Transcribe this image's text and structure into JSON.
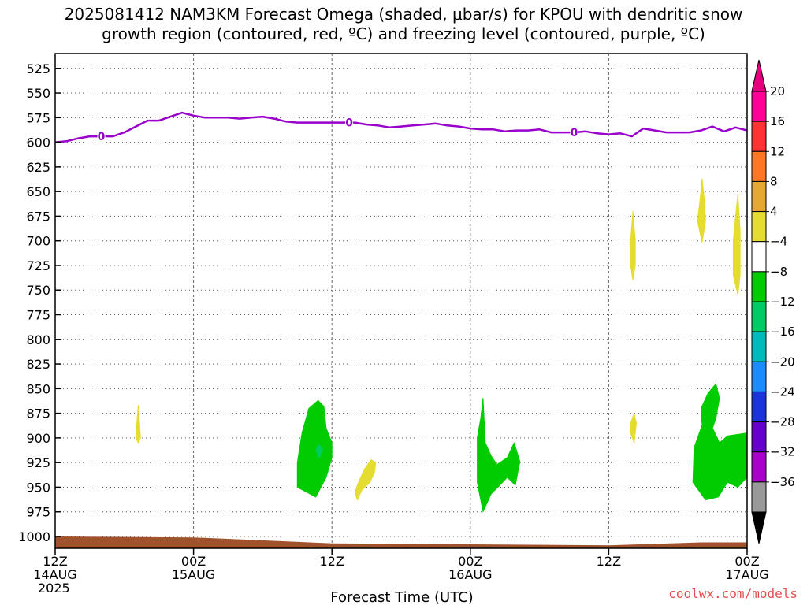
{
  "chart_data": {
    "type": "heatmap",
    "title_lines": [
      "2025081412 NAM3KM Forecast Omega (shaded, μbar/s) for KPOU with dendritic snow",
      "growth region (contoured, red, ºC) and freezing level (contoured, purple, ºC)"
    ],
    "xlabel": "Forecast Time (UTC)",
    "credit": "coolwx.com/models",
    "x_range_hours": [
      0,
      60
    ],
    "y_range_hpa": [
      510,
      1012
    ],
    "y_ticks": [
      525,
      550,
      575,
      600,
      625,
      650,
      675,
      700,
      725,
      750,
      775,
      800,
      825,
      850,
      875,
      900,
      925,
      950,
      975,
      1000
    ],
    "x_ticks": [
      {
        "hour": 0,
        "lines": [
          "12Z",
          "14AUG",
          "2025"
        ]
      },
      {
        "hour": 12,
        "lines": [
          "00Z",
          "15AUG"
        ]
      },
      {
        "hour": 24,
        "lines": [
          "12Z"
        ]
      },
      {
        "hour": 36,
        "lines": [
          "00Z",
          "16AUG"
        ]
      },
      {
        "hour": 48,
        "lines": [
          "12Z"
        ]
      },
      {
        "hour": 60,
        "lines": [
          "00Z",
          "17AUG"
        ]
      }
    ],
    "grid": true,
    "freezing_level": {
      "color": "#9900cc",
      "label": "0",
      "label_hours": [
        4,
        25.5,
        45
      ],
      "points": [
        [
          0,
          600
        ],
        [
          1,
          599
        ],
        [
          2,
          596
        ],
        [
          3,
          594
        ],
        [
          4,
          594
        ],
        [
          5,
          594
        ],
        [
          6,
          590
        ],
        [
          7,
          584
        ],
        [
          8,
          578
        ],
        [
          9,
          578
        ],
        [
          10,
          574
        ],
        [
          11,
          570
        ],
        [
          12,
          573
        ],
        [
          13,
          575
        ],
        [
          14,
          575
        ],
        [
          15,
          575
        ],
        [
          16,
          576
        ],
        [
          17,
          575
        ],
        [
          18,
          574
        ],
        [
          19,
          576
        ],
        [
          20,
          579
        ],
        [
          21,
          580
        ],
        [
          22,
          580
        ],
        [
          23,
          580
        ],
        [
          24,
          580
        ],
        [
          25,
          580
        ],
        [
          26,
          580
        ],
        [
          27,
          582
        ],
        [
          28,
          583
        ],
        [
          29,
          585
        ],
        [
          30,
          584
        ],
        [
          31,
          583
        ],
        [
          32,
          582
        ],
        [
          33,
          581
        ],
        [
          34,
          583
        ],
        [
          35,
          584
        ],
        [
          36,
          586
        ],
        [
          37,
          587
        ],
        [
          38,
          587
        ],
        [
          39,
          589
        ],
        [
          40,
          588
        ],
        [
          41,
          588
        ],
        [
          42,
          587
        ],
        [
          43,
          590
        ],
        [
          44,
          590
        ],
        [
          45,
          590
        ],
        [
          46,
          589
        ],
        [
          47,
          591
        ],
        [
          48,
          592
        ],
        [
          49,
          591
        ],
        [
          50,
          594
        ],
        [
          51,
          586
        ],
        [
          52,
          588
        ],
        [
          53,
          590
        ],
        [
          54,
          590
        ],
        [
          55,
          590
        ],
        [
          56,
          588
        ],
        [
          57,
          584
        ],
        [
          58,
          589
        ],
        [
          59,
          585
        ],
        [
          60,
          588
        ]
      ]
    },
    "surface": {
      "color": "#a0522d",
      "points": [
        [
          0,
          1000
        ],
        [
          12,
          1001
        ],
        [
          24,
          1007
        ],
        [
          36,
          1008
        ],
        [
          48,
          1009
        ],
        [
          56,
          1006
        ],
        [
          60,
          1006
        ]
      ]
    },
    "omega_regions": [
      {
        "level": 4,
        "color": "#e5dc32",
        "points": [
          [
            7.0,
            900
          ],
          [
            7.1,
            882
          ],
          [
            7.2,
            867
          ],
          [
            7.3,
            882
          ],
          [
            7.4,
            900
          ],
          [
            7.2,
            905
          ]
        ]
      },
      {
        "level": 4,
        "color": "#e5dc32",
        "points": [
          [
            26.0,
            955
          ],
          [
            26.3,
            945
          ],
          [
            26.8,
            932
          ],
          [
            27.4,
            922
          ],
          [
            27.8,
            925
          ],
          [
            27.7,
            935
          ],
          [
            27.3,
            945
          ],
          [
            26.6,
            953
          ],
          [
            26.2,
            963
          ]
        ]
      },
      {
        "level": -4,
        "color": "#00cc00",
        "points": [
          [
            21.0,
            950
          ],
          [
            21.0,
            925
          ],
          [
            21.4,
            895
          ],
          [
            22.0,
            870
          ],
          [
            22.8,
            862
          ],
          [
            23.3,
            868
          ],
          [
            23.5,
            890
          ],
          [
            24.0,
            905
          ],
          [
            24.0,
            920
          ],
          [
            23.5,
            940
          ],
          [
            22.6,
            960
          ],
          [
            21.8,
            955
          ]
        ]
      },
      {
        "level": -8,
        "color": "#00cc66",
        "points": [
          [
            22.6,
            912
          ],
          [
            22.9,
            907
          ],
          [
            23.2,
            912
          ],
          [
            22.9,
            920
          ]
        ]
      },
      {
        "level": -4,
        "color": "#00cc00",
        "points": [
          [
            36.6,
            945
          ],
          [
            36.6,
            900
          ],
          [
            36.9,
            880
          ],
          [
            37.1,
            860
          ],
          [
            37.3,
            905
          ],
          [
            37.8,
            918
          ],
          [
            38.3,
            927
          ],
          [
            39.2,
            920
          ],
          [
            39.8,
            905
          ],
          [
            40.3,
            924
          ],
          [
            39.9,
            948
          ],
          [
            39.2,
            940
          ],
          [
            38.4,
            950
          ],
          [
            37.8,
            957
          ],
          [
            37.1,
            975
          ]
        ]
      },
      {
        "level": 4,
        "color": "#e5dc32",
        "points": [
          [
            49.9,
            725
          ],
          [
            49.9,
            700
          ],
          [
            50.1,
            670
          ],
          [
            50.3,
            700
          ],
          [
            50.3,
            725
          ],
          [
            50.1,
            740
          ]
        ]
      },
      {
        "level": 4,
        "color": "#e5dc32",
        "points": [
          [
            49.9,
            895
          ],
          [
            49.9,
            885
          ],
          [
            50.2,
            875
          ],
          [
            50.4,
            885
          ],
          [
            50.3,
            895
          ],
          [
            50.2,
            905
          ]
        ]
      },
      {
        "level": 4,
        "color": "#e5dc32",
        "points": [
          [
            55.7,
            680
          ],
          [
            55.9,
            660
          ],
          [
            56.1,
            637
          ],
          [
            56.3,
            660
          ],
          [
            56.4,
            680
          ],
          [
            56.1,
            702
          ]
        ]
      },
      {
        "level": 4,
        "color": "#e5dc32",
        "points": [
          [
            58.8,
            735
          ],
          [
            58.8,
            700
          ],
          [
            59.0,
            675
          ],
          [
            59.2,
            652
          ],
          [
            59.4,
            690
          ],
          [
            59.4,
            735
          ],
          [
            59.2,
            755
          ]
        ]
      },
      {
        "level": -4,
        "color": "#00cc00",
        "points": [
          [
            55.3,
            945
          ],
          [
            55.4,
            910
          ],
          [
            56.1,
            887
          ],
          [
            56.0,
            870
          ],
          [
            56.6,
            855
          ],
          [
            57.3,
            845
          ],
          [
            57.6,
            860
          ],
          [
            57.3,
            880
          ],
          [
            57.0,
            890
          ],
          [
            57.6,
            905
          ],
          [
            58.3,
            898
          ],
          [
            60,
            895
          ],
          [
            60,
            940
          ],
          [
            59.2,
            950
          ],
          [
            58.3,
            945
          ],
          [
            57.5,
            960
          ],
          [
            56.4,
            963
          ]
        ]
      }
    ],
    "colorbar": {
      "labels": [
        "20",
        "16",
        "12",
        "8",
        "4",
        "−4",
        "−8",
        "−12",
        "−16",
        "−20",
        "−24",
        "−28",
        "−32",
        "−36"
      ],
      "bins": [
        "#ff0099",
        "#ff3333",
        "#ff7722",
        "#e5a832",
        "#e5dc32",
        "#ffffff",
        "#00cc00",
        "#00cc66",
        "#00bbbb",
        "#1a8cff",
        "#1a33dd",
        "#6600cc",
        "#aa00cc",
        "#999999"
      ],
      "top_color": "#e6007e",
      "bottom_color": "#000000"
    }
  }
}
